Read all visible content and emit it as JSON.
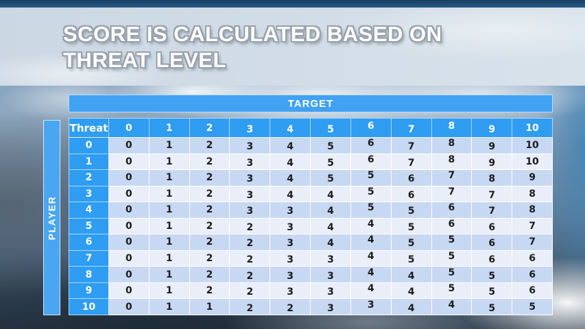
{
  "title": {
    "lines": [
      "SCORE IS CALCULATED BASED ON",
      "THREAT LEVEL"
    ]
  },
  "matrix": {
    "target_label": "TARGET",
    "player_label": "PLAYER",
    "corner_label": "Threat",
    "column_headers": [
      "0",
      "1",
      "2",
      "3",
      "4",
      "5",
      "6",
      "7",
      "8",
      "9",
      "10"
    ],
    "rows": [
      {
        "label": "0",
        "values": [
          "0",
          "1",
          "2",
          "3",
          "4",
          "5",
          "6",
          "7",
          "8",
          "9",
          "10"
        ]
      },
      {
        "label": "1",
        "values": [
          "0",
          "1",
          "2",
          "3",
          "4",
          "5",
          "6",
          "7",
          "8",
          "9",
          "10"
        ]
      },
      {
        "label": "2",
        "values": [
          "0",
          "1",
          "2",
          "3",
          "4",
          "5",
          "5",
          "6",
          "7",
          "8",
          "9"
        ]
      },
      {
        "label": "3",
        "values": [
          "0",
          "1",
          "2",
          "3",
          "4",
          "4",
          "5",
          "6",
          "7",
          "7",
          "8"
        ]
      },
      {
        "label": "4",
        "values": [
          "0",
          "1",
          "2",
          "3",
          "3",
          "4",
          "5",
          "5",
          "6",
          "7",
          "8"
        ]
      },
      {
        "label": "5",
        "values": [
          "0",
          "1",
          "2",
          "2",
          "3",
          "4",
          "4",
          "5",
          "6",
          "6",
          "7"
        ]
      },
      {
        "label": "6",
        "values": [
          "0",
          "1",
          "2",
          "2",
          "3",
          "4",
          "4",
          "5",
          "5",
          "6",
          "7"
        ]
      },
      {
        "label": "7",
        "values": [
          "0",
          "1",
          "2",
          "2",
          "3",
          "3",
          "4",
          "5",
          "5",
          "6",
          "6"
        ]
      },
      {
        "label": "8",
        "values": [
          "0",
          "1",
          "2",
          "2",
          "3",
          "3",
          "4",
          "4",
          "5",
          "5",
          "6"
        ]
      },
      {
        "label": "9",
        "values": [
          "0",
          "1",
          "2",
          "2",
          "3",
          "3",
          "4",
          "4",
          "5",
          "5",
          "6"
        ]
      },
      {
        "label": "10",
        "values": [
          "0",
          "1",
          "1",
          "2",
          "2",
          "3",
          "3",
          "4",
          "4",
          "5",
          "5"
        ]
      }
    ]
  },
  "colors": {
    "header_blue": "#2E9DF2",
    "bar_blue": "#41A1F3",
    "row_band_dark": "#C7D8F3",
    "row_band_light": "#E9EEF9",
    "title_text": "#FFFFFF",
    "title_outline": "#97A1AB",
    "cell_text": "#1C1C1C"
  }
}
